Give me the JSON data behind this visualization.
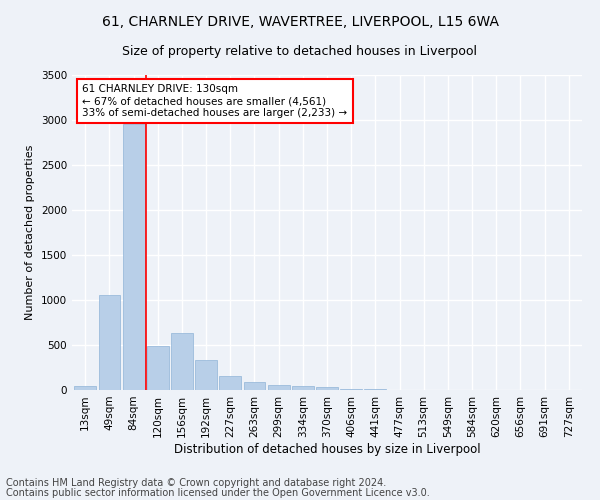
{
  "title": "61, CHARNLEY DRIVE, WAVERTREE, LIVERPOOL, L15 6WA",
  "subtitle": "Size of property relative to detached houses in Liverpool",
  "xlabel": "Distribution of detached houses by size in Liverpool",
  "ylabel": "Number of detached properties",
  "categories": [
    "13sqm",
    "49sqm",
    "84sqm",
    "120sqm",
    "156sqm",
    "192sqm",
    "227sqm",
    "263sqm",
    "299sqm",
    "334sqm",
    "370sqm",
    "406sqm",
    "441sqm",
    "477sqm",
    "513sqm",
    "549sqm",
    "584sqm",
    "620sqm",
    "656sqm",
    "691sqm",
    "727sqm"
  ],
  "values": [
    50,
    1060,
    2950,
    490,
    630,
    330,
    160,
    90,
    55,
    40,
    30,
    15,
    8,
    5,
    3,
    2,
    2,
    2,
    1,
    1,
    1
  ],
  "bar_color": "#b8cfe8",
  "bar_edge_color": "#90b4d8",
  "red_line_x": 2.5,
  "annotation_text": "61 CHARNLEY DRIVE: 130sqm\n← 67% of detached houses are smaller (4,561)\n33% of semi-detached houses are larger (2,233) →",
  "annotation_box_color": "white",
  "annotation_box_edge_color": "red",
  "ylim": [
    0,
    3500
  ],
  "yticks": [
    0,
    500,
    1000,
    1500,
    2000,
    2500,
    3000,
    3500
  ],
  "footer1": "Contains HM Land Registry data © Crown copyright and database right 2024.",
  "footer2": "Contains public sector information licensed under the Open Government Licence v3.0.",
  "background_color": "#eef2f8",
  "plot_bg_color": "#eef2f8",
  "grid_color": "#ffffff",
  "title_fontsize": 10,
  "subtitle_fontsize": 9,
  "xlabel_fontsize": 8.5,
  "ylabel_fontsize": 8,
  "tick_fontsize": 7.5,
  "footer_fontsize": 7,
  "annotation_fontsize": 7.5
}
